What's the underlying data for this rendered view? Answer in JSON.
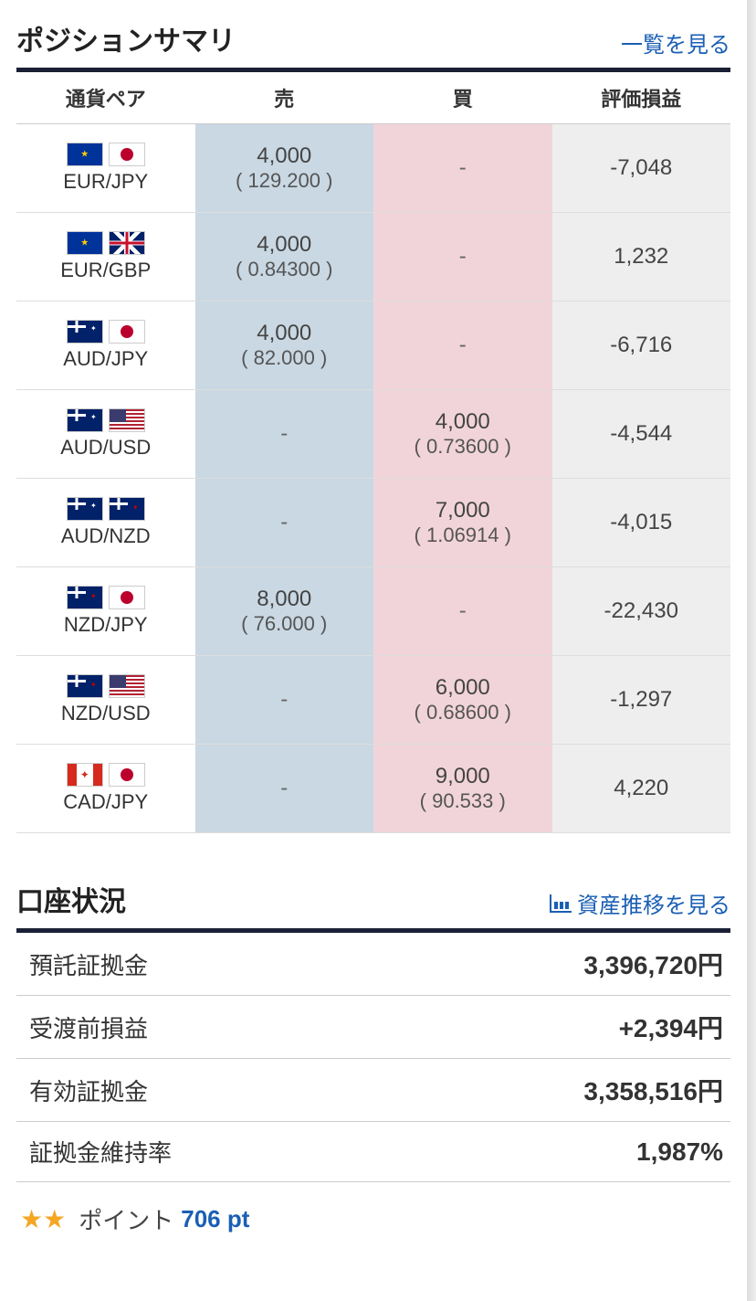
{
  "positions": {
    "title": "ポジションサマリ",
    "link_label": "一覧を見る",
    "headers": {
      "pair": "通貨ペア",
      "sell": "売",
      "buy": "買",
      "pl": "評価損益"
    },
    "colors": {
      "sell_bg": "#c9d8e3",
      "buy_bg": "#f1d4d9",
      "pl_bg": "#eeeeee",
      "rule": "#1a2035"
    },
    "rows": [
      {
        "pair": "EUR/JPY",
        "flags": [
          "eu",
          "jp"
        ],
        "sell_qty": "4,000",
        "sell_price": "( 129.200 )",
        "buy_qty": "-",
        "buy_price": "",
        "pl": "-7,048"
      },
      {
        "pair": "EUR/GBP",
        "flags": [
          "eu",
          "gb"
        ],
        "sell_qty": "4,000",
        "sell_price": "( 0.84300 )",
        "buy_qty": "-",
        "buy_price": "",
        "pl": "1,232"
      },
      {
        "pair": "AUD/JPY",
        "flags": [
          "au",
          "jp"
        ],
        "sell_qty": "4,000",
        "sell_price": "( 82.000 )",
        "buy_qty": "-",
        "buy_price": "",
        "pl": "-6,716"
      },
      {
        "pair": "AUD/USD",
        "flags": [
          "au",
          "us"
        ],
        "sell_qty": "-",
        "sell_price": "",
        "buy_qty": "4,000",
        "buy_price": "( 0.73600 )",
        "pl": "-4,544"
      },
      {
        "pair": "AUD/NZD",
        "flags": [
          "au",
          "nz"
        ],
        "sell_qty": "-",
        "sell_price": "",
        "buy_qty": "7,000",
        "buy_price": "( 1.06914 )",
        "pl": "-4,015"
      },
      {
        "pair": "NZD/JPY",
        "flags": [
          "nz",
          "jp"
        ],
        "sell_qty": "8,000",
        "sell_price": "( 76.000 )",
        "buy_qty": "-",
        "buy_price": "",
        "pl": "-22,430"
      },
      {
        "pair": "NZD/USD",
        "flags": [
          "nz",
          "us"
        ],
        "sell_qty": "-",
        "sell_price": "",
        "buy_qty": "6,000",
        "buy_price": "( 0.68600 )",
        "pl": "-1,297"
      },
      {
        "pair": "CAD/JPY",
        "flags": [
          "ca",
          "jp"
        ],
        "sell_qty": "-",
        "sell_price": "",
        "buy_qty": "9,000",
        "buy_price": "( 90.533 )",
        "pl": "4,220"
      }
    ]
  },
  "account": {
    "title": "口座状況",
    "link_label": "資産推移を見る",
    "rows": [
      {
        "label": "預託証拠金",
        "value": "3,396,720円"
      },
      {
        "label": "受渡前損益",
        "value": "+2,394円"
      },
      {
        "label": "有効証拠金",
        "value": "3,358,516円"
      },
      {
        "label": "証拠金維持率",
        "value": "1,987%"
      }
    ]
  },
  "points": {
    "label": "ポイント",
    "value": "706 pt",
    "stars": 2
  }
}
